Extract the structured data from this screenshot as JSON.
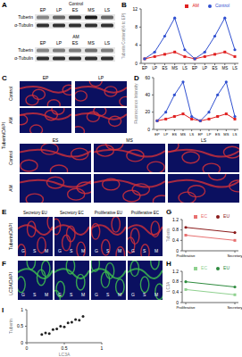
{
  "panel_letters": [
    "A",
    "B",
    "C",
    "D",
    "E",
    "F",
    "G",
    "H",
    "I"
  ],
  "blot": {
    "groups": [
      "Control",
      "AM"
    ],
    "stages": [
      "EP",
      "LP",
      "ES",
      "MS",
      "LS"
    ],
    "rows": [
      "Tuberin",
      "α-Tubulin"
    ]
  },
  "images": {
    "C": {
      "groups": [
        "Control",
        "AM"
      ],
      "stages": [
        "EP",
        "LP",
        "ES",
        "MS",
        "LS"
      ],
      "stain": "Tuberin/DAPI"
    },
    "E": {
      "columns": [
        "Secretory EU",
        "Secretory EC",
        "Proliferative EU",
        "Proliferative EC"
      ],
      "stain": "Tuberin/DAPI",
      "marks": [
        "G",
        "S",
        "M"
      ]
    },
    "F": {
      "stain": "LC3A/DAPI",
      "marks": [
        "G",
        "S",
        "M"
      ]
    }
  },
  "chart_data": [
    {
      "type": "line",
      "ylabel": "Tuberin Content(% to EP)",
      "categories": [
        "EP",
        "LP",
        "ES",
        "MS",
        "LS",
        "EP",
        "LP",
        "ES",
        "MS",
        "LS"
      ],
      "series": [
        {
          "name": "AM",
          "color": "#e02020",
          "marker": "square",
          "values": [
            1,
            1.5,
            2,
            2.5,
            1.5,
            1,
            1.5,
            2,
            2.5,
            1.5
          ]
        },
        {
          "name": "Control",
          "color": "#3050d0",
          "marker": "circle",
          "values": [
            1,
            2.5,
            6,
            10,
            3,
            1,
            2.5,
            6,
            10,
            3
          ]
        }
      ],
      "ylim": [
        0,
        12
      ],
      "yticks": [
        0,
        4,
        8,
        12
      ],
      "legend": "upper right"
    },
    {
      "type": "line",
      "ylabel": "Fluorescence Intensity",
      "categories": [
        "EP",
        "LP",
        "ES",
        "MS",
        "LS",
        "EP",
        "LP",
        "ES",
        "MS",
        "LS"
      ],
      "series": [
        {
          "name": "AM",
          "color": "#e02020",
          "marker": "square",
          "values": [
            10,
            12,
            15,
            18,
            12,
            10,
            12,
            15,
            18,
            12
          ]
        },
        {
          "name": "Control",
          "color": "#3050d0",
          "marker": "circle",
          "values": [
            10,
            20,
            40,
            55,
            15,
            10,
            20,
            40,
            55,
            15
          ]
        }
      ],
      "ylim": [
        0,
        60
      ],
      "yticks": [
        0,
        20,
        40,
        60
      ]
    },
    {
      "type": "line",
      "ylabel": "Tuberin",
      "categories": [
        "Proliferative",
        "Secretory"
      ],
      "series": [
        {
          "name": "EU",
          "color": "#8b1a1a",
          "marker": "circle",
          "values": [
            0.9,
            0.7
          ]
        },
        {
          "name": "EC",
          "color": "#e87070",
          "marker": "square",
          "values": [
            0.6,
            0.4
          ]
        }
      ],
      "ylim": [
        0,
        1.2
      ],
      "yticks": [
        0,
        0.4,
        0.8,
        1.2
      ],
      "legend": "upper right"
    },
    {
      "type": "line",
      "ylabel": "LC3A",
      "categories": [
        "Proliferative",
        "Secretory"
      ],
      "series": [
        {
          "name": "EU",
          "color": "#2e8b3e",
          "marker": "circle",
          "values": [
            0.8,
            0.6
          ]
        },
        {
          "name": "EC",
          "color": "#8fd18f",
          "marker": "square",
          "values": [
            0.5,
            0.3
          ]
        }
      ],
      "ylim": [
        0,
        1.2
      ],
      "yticks": [
        0,
        0.4,
        0.8,
        1.2
      ],
      "legend": "upper right"
    },
    {
      "type": "scatter",
      "xlabel": "LC3A",
      "ylabel": "Tuberin",
      "color": "#222222",
      "x": [
        0.2,
        0.25,
        0.3,
        0.35,
        0.4,
        0.45,
        0.5,
        0.55,
        0.6,
        0.65,
        0.7,
        0.75
      ],
      "y": [
        0.25,
        0.3,
        0.28,
        0.4,
        0.42,
        0.5,
        0.48,
        0.6,
        0.62,
        0.7,
        0.68,
        0.8
      ],
      "xlim": [
        0,
        1
      ],
      "ylim": [
        0,
        1
      ],
      "xticks": [
        0,
        0.5,
        1
      ],
      "yticks": [
        0,
        0.5,
        1
      ]
    }
  ]
}
